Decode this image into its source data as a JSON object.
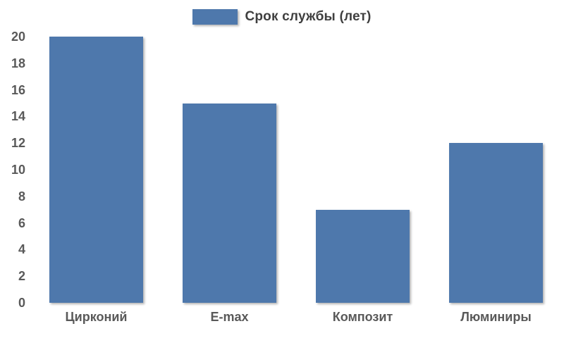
{
  "legend": {
    "label": "Срок службы (лет)"
  },
  "colors": {
    "bar": "#4E78AC",
    "axis_text": "#595959",
    "legend_text": "#3f3f3f",
    "background": "#ffffff"
  },
  "chart_data": {
    "type": "bar",
    "title": "",
    "categories": [
      "Цирконий",
      "E-max",
      "Композит",
      "Люминиры"
    ],
    "series": [
      {
        "name": "Срок службы (лет)",
        "values": [
          20,
          15,
          7,
          12
        ]
      }
    ],
    "xlabel": "",
    "ylabel": "",
    "ylim": [
      0,
      20
    ],
    "ytick_step": 2,
    "ytick_labels": [
      "0",
      "2",
      "4",
      "6",
      "8",
      "10",
      "12",
      "14",
      "16",
      "18",
      "20"
    ],
    "grid": false,
    "legend_position": "top-center",
    "bar_color": "#4E78AC"
  }
}
